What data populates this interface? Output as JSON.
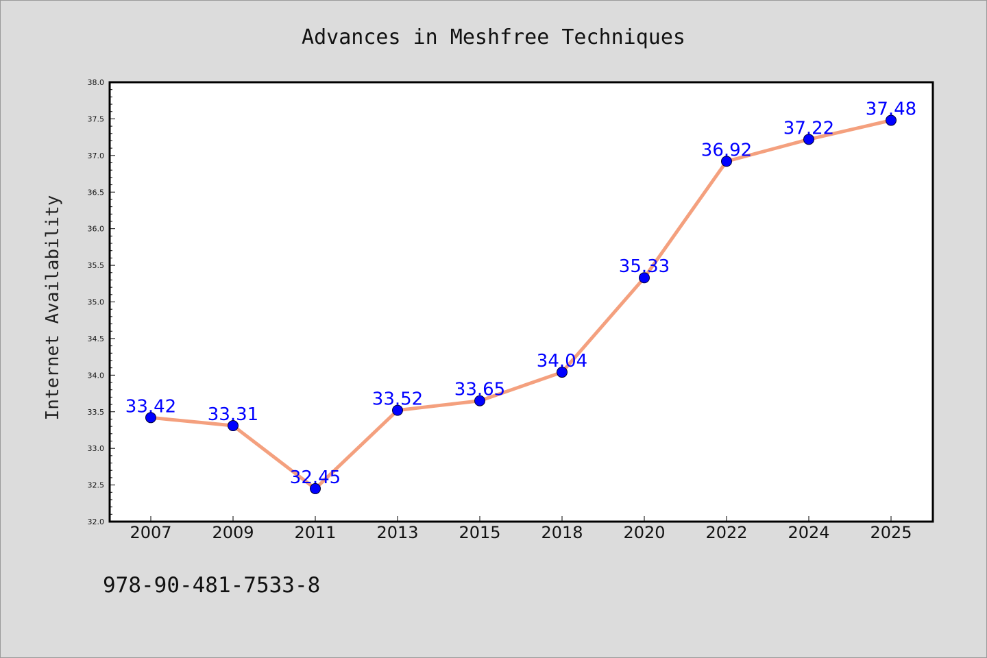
{
  "colors": {
    "background": "#dcdcdc",
    "plot_background": "#ffffff",
    "line": "#f4a07e",
    "marker": "#0000ff",
    "data_label": "#0000ff"
  },
  "chart_data": {
    "type": "line",
    "title": "Advances in Meshfree Techniques",
    "xlabel": "",
    "ylabel": "Internet Availability",
    "categories": [
      "2007",
      "2009",
      "2011",
      "2013",
      "2015",
      "2018",
      "2020",
      "2022",
      "2024",
      "2025"
    ],
    "series": [
      {
        "values": [
          33.42,
          33.31,
          32.45,
          33.52,
          33.65,
          34.04,
          35.33,
          36.92,
          37.22,
          37.48
        ],
        "data_labels": [
          "33.42",
          "33.31",
          "32.45",
          "33.52",
          "33.65",
          "34.04",
          "35.33",
          "36.92",
          "37.22",
          "37.48"
        ]
      }
    ],
    "ylim": [
      32.0,
      38.0
    ],
    "yticks": [
      "32.0",
      "32.5",
      "33.0",
      "33.5",
      "34.0",
      "34.5",
      "35.0",
      "35.5",
      "36.0",
      "36.5",
      "37.0",
      "37.5",
      "38.0"
    ],
    "grid": false,
    "legend": "none"
  },
  "footer": {
    "code": "978-90-481-7533-8"
  }
}
